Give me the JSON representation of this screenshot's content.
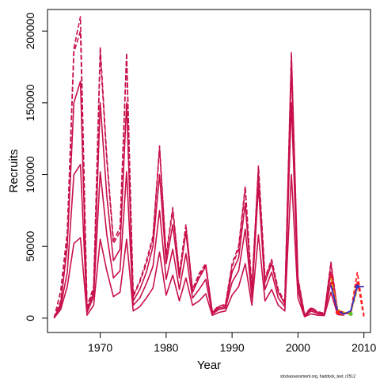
{
  "chart_data": {
    "type": "line",
    "xlabel": "Year",
    "ylabel": "Recruits",
    "xlim": [
      1962,
      2011
    ],
    "ylim": [
      -10000,
      215000
    ],
    "x_ticks": [
      1970,
      1980,
      1990,
      2000,
      2010
    ],
    "x_tick_labels": [
      "1970",
      "1980",
      "1990",
      "2000",
      "2010"
    ],
    "y_ticks": [
      0,
      50000,
      100000,
      150000,
      200000
    ],
    "y_tick_labels": [
      "0",
      "50000",
      "100000",
      "150000",
      "200000"
    ],
    "grid": false,
    "colors": {
      "main": "#c8104a",
      "dashed": "#c8104a",
      "recent_red": "#ff2020",
      "recent_orange": "#e8a000",
      "recent_blue": "#3030c0",
      "recent_green": "#60c020"
    },
    "x": [
      1963,
      1964,
      1965,
      1966,
      1967,
      1968,
      1969,
      1970,
      1971,
      1972,
      1973,
      1974,
      1975,
      1976,
      1977,
      1978,
      1979,
      1980,
      1981,
      1982,
      1983,
      1984,
      1985,
      1986,
      1987,
      1988,
      1989,
      1990,
      1991,
      1992,
      1993,
      1994,
      1995,
      1996,
      1997,
      1998,
      1999,
      2000,
      2001,
      2002,
      2003,
      2004,
      2005,
      2006,
      2007
    ],
    "series": [
      {
        "style": "solid",
        "values": [
          100,
          6000,
          22000,
          52000,
          56000,
          2000,
          9000,
          55000,
          33000,
          15000,
          18000,
          55000,
          5000,
          8000,
          14000,
          21000,
          46000,
          16000,
          30000,
          12000,
          28000,
          9000,
          12000,
          17000,
          2000,
          4000,
          5000,
          16000,
          22000,
          38000,
          9000,
          58000,
          12000,
          20000,
          9000,
          5000,
          100000,
          14000,
          1000,
          3000,
          2000,
          1800,
          18000,
          2500,
          2000
        ]
      },
      {
        "style": "solid",
        "values": [
          100,
          8000,
          32000,
          100000,
          107000,
          4000,
          15000,
          102000,
          58000,
          28000,
          33000,
          102000,
          9000,
          14000,
          24000,
          36000,
          75000,
          27000,
          48000,
          20000,
          45000,
          14000,
          20000,
          27000,
          3000,
          6000,
          7000,
          25000,
          33000,
          62000,
          14000,
          92000,
          20000,
          32000,
          14000,
          8000,
          150000,
          20000,
          1000,
          5000,
          3000,
          2500,
          25000,
          3500,
          3000
        ]
      },
      {
        "style": "solid",
        "values": [
          100,
          10000,
          50000,
          150000,
          165000,
          5000,
          18000,
          150000,
          85000,
          40000,
          48000,
          150000,
          12000,
          20000,
          32000,
          50000,
          100000,
          38000,
          65000,
          28000,
          60000,
          18000,
          28000,
          36000,
          4000,
          7000,
          8000,
          32000,
          42000,
          80000,
          18000,
          100000,
          25000,
          38000,
          18000,
          10000,
          175000,
          25000,
          2000,
          6000,
          4000,
          3000,
          32000,
          4500,
          3500
        ]
      },
      {
        "style": "dashed",
        "values": [
          0,
          12000,
          55000,
          185000,
          200000,
          6000,
          20000,
          185000,
          110000,
          52000,
          60000,
          182000,
          15000,
          25000,
          38000,
          55000,
          118000,
          42000,
          75000,
          30000,
          64000,
          19000,
          30000,
          37000,
          4000,
          8000,
          9000,
          36000,
          48000,
          90000,
          19000,
          105000,
          27000,
          40000,
          19000,
          10000,
          183000,
          27000,
          2000,
          7000,
          4000,
          3000,
          38000,
          5000,
          3500
        ]
      },
      {
        "style": "dashed",
        "values": [
          0,
          19000,
          60000,
          188000,
          210000,
          8000,
          22000,
          189000,
          112000,
          54000,
          63000,
          185000,
          16000,
          26000,
          40000,
          57000,
          120000,
          44000,
          77000,
          31000,
          65000,
          20000,
          31000,
          38000,
          4500,
          8500,
          9500,
          38000,
          50000,
          92000,
          20000,
          106000,
          28000,
          41000,
          20000,
          11000,
          185000,
          28000,
          2500,
          7500,
          4500,
          3500,
          39000,
          5500,
          4000
        ]
      }
    ],
    "recent_series": [
      {
        "name_color": "recent_red",
        "style": "dashed",
        "x": [
          2005,
          2006,
          2007,
          2008,
          2009,
          2010
        ],
        "values": [
          30000,
          4000,
          3000,
          4000,
          32000,
          2000
        ]
      },
      {
        "name_color": "recent_red",
        "style": "dashed",
        "x": [
          2005,
          2006,
          2007,
          2008,
          2009,
          2010
        ],
        "values": [
          24000,
          5000,
          3500,
          3000,
          26000,
          1000
        ]
      },
      {
        "name_color": "recent_orange",
        "style": "dashed",
        "x": [
          2005,
          2006,
          2007,
          2008,
          2009
        ],
        "values": [
          28000,
          6000,
          4000,
          3500,
          20000
        ]
      },
      {
        "name_color": "recent_blue",
        "style": "solid",
        "x": [
          2005,
          2006,
          2007,
          2008,
          2009,
          2010
        ],
        "values": [
          23000,
          5000,
          3000,
          5000,
          22000,
          22000
        ]
      }
    ],
    "recent_points": [
      {
        "name_color": "recent_red",
        "x": 2006,
        "y": 4000
      },
      {
        "name_color": "recent_green",
        "x": 2008,
        "y": 3000
      },
      {
        "name_color": "recent_blue",
        "x": 2009,
        "y": 22000
      }
    ]
  },
  "footer": {
    "note": "stockassessment.org, haddock_test, r2512"
  }
}
